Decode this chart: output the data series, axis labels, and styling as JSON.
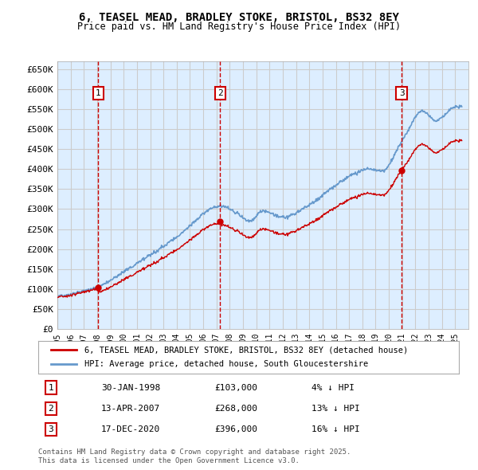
{
  "title": "6, TEASEL MEAD, BRADLEY STOKE, BRISTOL, BS32 8EY",
  "subtitle": "Price paid vs. HM Land Registry's House Price Index (HPI)",
  "ylabel_ticks": [
    "£0",
    "£50K",
    "£100K",
    "£150K",
    "£200K",
    "£250K",
    "£300K",
    "£350K",
    "£400K",
    "£450K",
    "£500K",
    "£550K",
    "£600K",
    "£650K"
  ],
  "ytick_values": [
    0,
    50000,
    100000,
    150000,
    200000,
    250000,
    300000,
    350000,
    400000,
    450000,
    500000,
    550000,
    600000,
    650000
  ],
  "ylim": [
    0,
    670000
  ],
  "xlim_start": 1995.0,
  "xlim_end": 2026.0,
  "grid_color": "#cccccc",
  "background_color": "#ddeeff",
  "plot_bg_color": "#ddeeff",
  "hpi_line_color": "#6699cc",
  "price_line_color": "#cc0000",
  "sale_marker_color": "#cc0000",
  "vline_color": "#cc0000",
  "sale_vline_style": "--",
  "legend_label_price": "6, TEASEL MEAD, BRADLEY STOKE, BRISTOL, BS32 8EY (detached house)",
  "legend_label_hpi": "HPI: Average price, detached house, South Gloucestershire",
  "transactions": [
    {
      "num": 1,
      "date_str": "30-JAN-1998",
      "date_x": 1998.08,
      "price": 103000,
      "pct": "4%",
      "dir": "↓"
    },
    {
      "num": 2,
      "date_str": "13-APR-2007",
      "date_x": 2007.28,
      "price": 268000,
      "pct": "13%",
      "dir": "↓"
    },
    {
      "num": 3,
      "date_str": "17-DEC-2020",
      "date_x": 2020.96,
      "price": 396000,
      "pct": "16%",
      "dir": "↓"
    }
  ],
  "footer": "Contains HM Land Registry data © Crown copyright and database right 2025.\nThis data is licensed under the Open Government Licence v3.0.",
  "xtick_years": [
    1995,
    1996,
    1997,
    1998,
    1999,
    2000,
    2001,
    2002,
    2003,
    2004,
    2005,
    2006,
    2007,
    2008,
    2009,
    2010,
    2011,
    2012,
    2013,
    2014,
    2015,
    2016,
    2017,
    2018,
    2019,
    2020,
    2021,
    2022,
    2023,
    2024,
    2025
  ]
}
